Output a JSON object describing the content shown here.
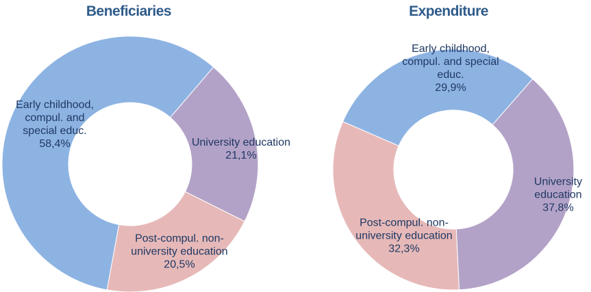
{
  "chart_data": [
    {
      "type": "donut",
      "title": "Beneficiaries",
      "categories": [
        "Early childhood,\ncompul. and\nspecial educ.",
        "University education",
        "Post-compul. non-\nuniversity education"
      ],
      "values": [
        58.4,
        21.1,
        20.5
      ],
      "value_labels": [
        "58,4%",
        "21,1%",
        "20,5%"
      ],
      "colors": [
        "#8db3e2",
        "#b3a2c7",
        "#e6b9b8"
      ]
    },
    {
      "type": "donut",
      "title": "Expenditure",
      "categories": [
        "Early childhood,\ncompul. and special\neduc.",
        "University\neducation",
        "Post-compul. non-\nuniversity education"
      ],
      "values": [
        29.9,
        37.8,
        32.3
      ],
      "value_labels": [
        "29,9%",
        "37,8%",
        "32,3%"
      ],
      "colors": [
        "#8db3e2",
        "#b3a2c7",
        "#e6b9b8"
      ]
    }
  ]
}
